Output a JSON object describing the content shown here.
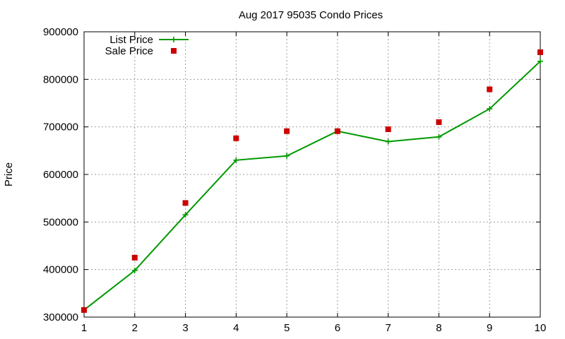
{
  "chart_data": {
    "type": "line",
    "title": "Aug 2017 95035 Condo Prices",
    "xlabel": "",
    "ylabel": "Price",
    "x": [
      1,
      2,
      3,
      4,
      5,
      6,
      7,
      8,
      9,
      10
    ],
    "xlim": [
      1,
      10
    ],
    "ylim": [
      300000,
      900000
    ],
    "xticks": [
      "1",
      "2",
      "3",
      "4",
      "5",
      "6",
      "7",
      "8",
      "9",
      "10"
    ],
    "yticks": [
      "300000",
      "400000",
      "500000",
      "600000",
      "700000",
      "800000",
      "900000"
    ],
    "grid": true,
    "legend_position": "top-left",
    "series": [
      {
        "name": "List Price",
        "style": "line-with-plus-markers",
        "color": "#009900",
        "values": [
          315000,
          398000,
          515000,
          630000,
          639000,
          691000,
          669000,
          679000,
          738000,
          838000
        ]
      },
      {
        "name": "Sale Price",
        "style": "square-markers",
        "color": "#cc0000",
        "values": [
          315000,
          425000,
          540000,
          676000,
          691000,
          691000,
          695000,
          710000,
          779000,
          857000
        ]
      }
    ]
  }
}
